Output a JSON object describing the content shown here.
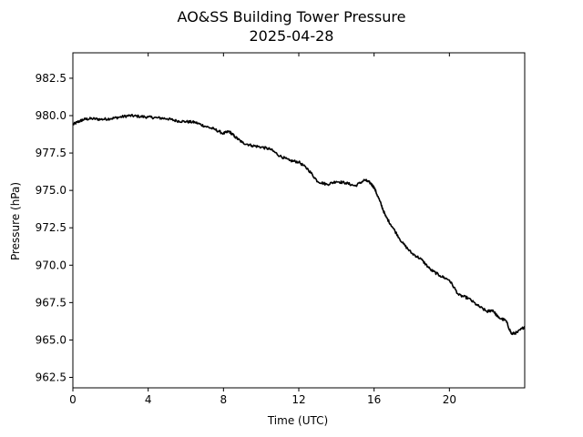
{
  "chart_data": {
    "type": "line",
    "title": "AO&SS Building Tower Pressure",
    "subtitle": "2025-04-28",
    "xlabel": "Time (UTC)",
    "ylabel": "Pressure (hPa)",
    "xlim": [
      0,
      24
    ],
    "ylim": [
      961.8,
      984.2
    ],
    "xticks": [
      0,
      4,
      8,
      12,
      16,
      20
    ],
    "xtick_labels": [
      "0",
      "4",
      "8",
      "12",
      "16",
      "20"
    ],
    "yticks": [
      962.5,
      965.0,
      967.5,
      970.0,
      972.5,
      975.0,
      977.5,
      980.0,
      982.5
    ],
    "ytick_labels": [
      "962.5",
      "965.0",
      "967.5",
      "970.0",
      "972.5",
      "975.0",
      "977.5",
      "980.0",
      "982.5"
    ],
    "grid": false,
    "line_color": "#000000",
    "series": [
      {
        "x": [
          0.0,
          0.3,
          0.6,
          1.0,
          1.5,
          2.0,
          2.5,
          3.0,
          3.5,
          4.0,
          4.5,
          5.0,
          5.5,
          6.0,
          6.5,
          7.0,
          7.5,
          8.0,
          8.3,
          8.6,
          9.0,
          9.5,
          10.0,
          10.5,
          11.0,
          11.5,
          12.0,
          12.5,
          13.0,
          13.5,
          14.0,
          14.5,
          15.0,
          15.5,
          15.8,
          16.0,
          16.3,
          16.6,
          17.0,
          17.5,
          18.0,
          18.5,
          19.0,
          19.5,
          20.0,
          20.5,
          21.0,
          21.5,
          22.0,
          22.3,
          22.6,
          23.0,
          23.3,
          23.6,
          24.0
        ],
        "values": [
          979.4,
          979.6,
          979.75,
          979.8,
          979.75,
          979.8,
          979.9,
          980.0,
          979.95,
          979.9,
          979.85,
          979.8,
          979.65,
          979.6,
          979.55,
          979.3,
          979.1,
          978.8,
          978.95,
          978.6,
          978.2,
          978.0,
          977.9,
          977.75,
          977.3,
          977.0,
          976.9,
          976.4,
          975.6,
          975.4,
          975.6,
          975.5,
          975.3,
          975.7,
          975.5,
          975.2,
          974.3,
          973.3,
          972.5,
          971.5,
          970.8,
          970.4,
          969.7,
          969.3,
          969.0,
          968.0,
          967.8,
          967.3,
          966.9,
          967.0,
          966.5,
          966.3,
          965.4,
          965.5,
          965.9
        ]
      }
    ]
  }
}
